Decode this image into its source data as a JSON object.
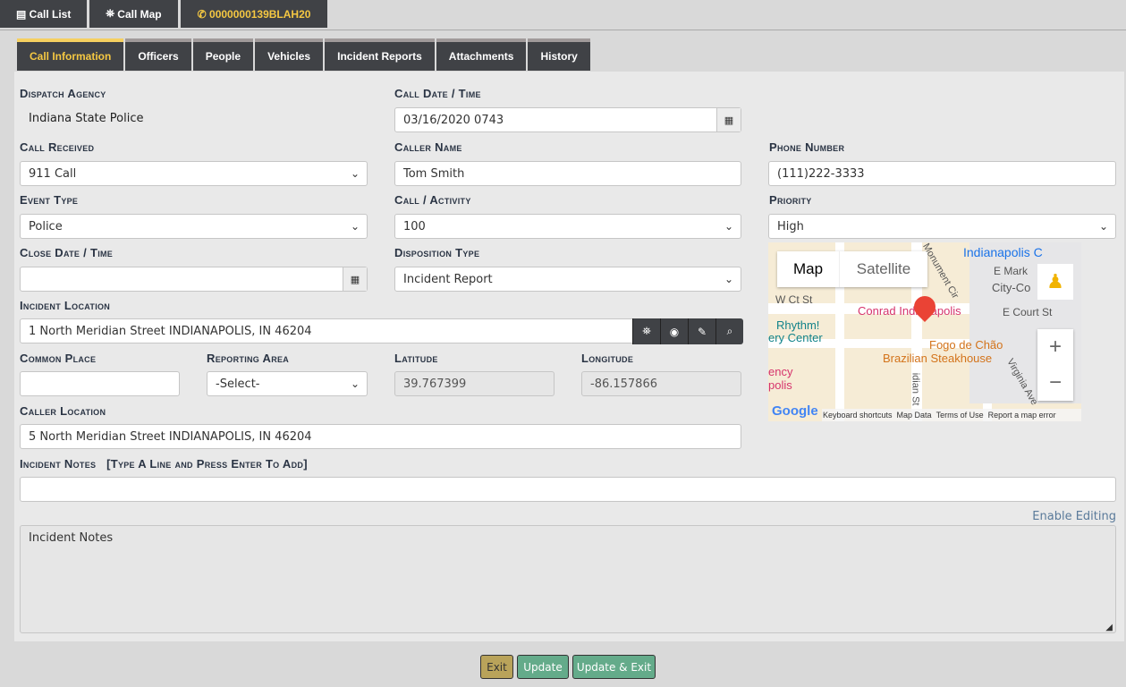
{
  "topbar": {
    "call_list": "Call List",
    "call_map": "Call Map",
    "call_id": "0000000139BLAH20"
  },
  "tabs": [
    "Call Information",
    "Officers",
    "People",
    "Vehicles",
    "Incident Reports",
    "Attachments",
    "History"
  ],
  "form": {
    "dispatch_agency_label": "Dispatch Agency",
    "dispatch_agency": "Indiana State Police",
    "call_date_label": "Call Date / Time",
    "call_date": "03/16/2020 0743",
    "call_received_label": "Call Received",
    "call_received": "911 Call",
    "caller_name_label": "Caller Name",
    "caller_name": "Tom Smith",
    "phone_label": "Phone Number",
    "phone": "(111)222-3333",
    "event_type_label": "Event Type",
    "event_type": "Police",
    "call_activity_label": "Call / Activity",
    "call_activity": "100",
    "priority_label": "Priority",
    "priority": "High",
    "close_date_label": "Close Date / Time",
    "close_date": "",
    "disposition_label": "Disposition Type",
    "disposition": "Incident Report",
    "incident_location_label": "Incident Location",
    "incident_location": "1 North Meridian Street INDIANAPOLIS, IN 46204",
    "common_place_label": "Common Place",
    "common_place": "",
    "reporting_area_label": "Reporting Area",
    "reporting_area": "-Select-",
    "latitude_label": "Latitude",
    "latitude": "39.767399",
    "longitude_label": "Longitude",
    "longitude": "-86.157866",
    "caller_location_label": "Caller Location",
    "caller_location": "5 North Meridian Street INDIANAPOLIS, IN 46204",
    "incident_notes_label": "Incident Notes",
    "incident_notes_hint": "[Type A Line and Press Enter To Add]",
    "enable_editing": "Enable Editing",
    "notes_text": "Incident Notes"
  },
  "map": {
    "map_tab": "Map",
    "satellite_tab": "Satellite",
    "labels": [
      "Indianapolis C",
      "E Mark",
      "City-Co",
      "W Ct St",
      "Conrad Indianapolis",
      "E Court St",
      "Rhythm!",
      "ery Center",
      "Fogo de Chão",
      "Brazilian Steakhouse",
      "ency",
      "polis",
      "Monument Cir",
      "idian St",
      "Virginia Ave"
    ],
    "footer": [
      "Keyboard shortcuts",
      "Map Data",
      "Terms of Use",
      "Report a map error"
    ],
    "logo": "Google"
  },
  "buttons": {
    "exit": "Exit",
    "update": "Update",
    "update_exit": "Update & Exit"
  },
  "colors": {
    "dark": "#404246",
    "accent": "#f5c842",
    "green": "#64ab8a",
    "gold": "#b9a35a"
  }
}
